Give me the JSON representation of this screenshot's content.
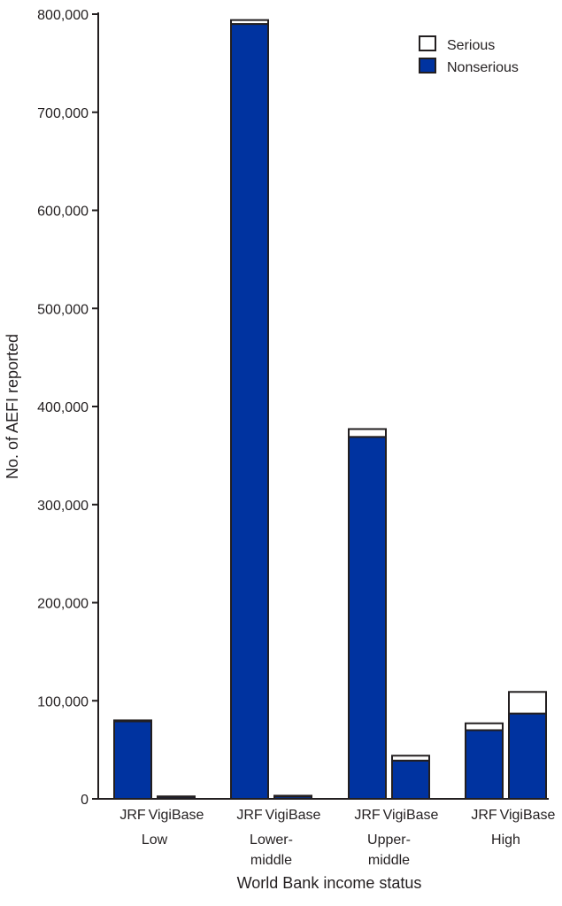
{
  "chart_data": {
    "type": "bar",
    "stacked": true,
    "title": "",
    "xlabel": "World Bank income status",
    "ylabel": "No. of AEFI reported",
    "ylim": [
      0,
      800000
    ],
    "yticks": [
      0,
      100000,
      200000,
      300000,
      400000,
      500000,
      600000,
      700000,
      800000
    ],
    "ytick_labels": [
      "0",
      "100,000",
      "200,000",
      "300,000",
      "400,000",
      "500,000",
      "600,000",
      "700,000",
      "800,000"
    ],
    "legend_position": "top-right",
    "groups": [
      {
        "label_lines": [
          "Low"
        ],
        "categories": [
          "JRF",
          "VigiBase"
        ]
      },
      {
        "label_lines": [
          "Lower-",
          "middle"
        ],
        "categories": [
          "JRF",
          "VigiBase"
        ]
      },
      {
        "label_lines": [
          "Upper-",
          "middle"
        ],
        "categories": [
          "JRF",
          "VigiBase"
        ]
      },
      {
        "label_lines": [
          "High"
        ],
        "categories": [
          "JRF",
          "VigiBase"
        ]
      }
    ],
    "categories": [
      "JRF",
      "VigiBase",
      "JRF",
      "VigiBase",
      "JRF",
      "VigiBase",
      "JRF",
      "VigiBase"
    ],
    "series": [
      {
        "name": "Nonserious",
        "color": "#0033a0",
        "values": [
          79000,
          2000,
          790000,
          2500,
          369000,
          39000,
          70000,
          87000
        ]
      },
      {
        "name": "Serious",
        "color": "#ffffff",
        "values": [
          1000,
          500,
          4000,
          700,
          8000,
          5000,
          7000,
          22000
        ]
      }
    ],
    "legend": [
      {
        "label": "Serious",
        "color": "#ffffff"
      },
      {
        "label": "Nonserious",
        "color": "#0033a0"
      }
    ]
  }
}
